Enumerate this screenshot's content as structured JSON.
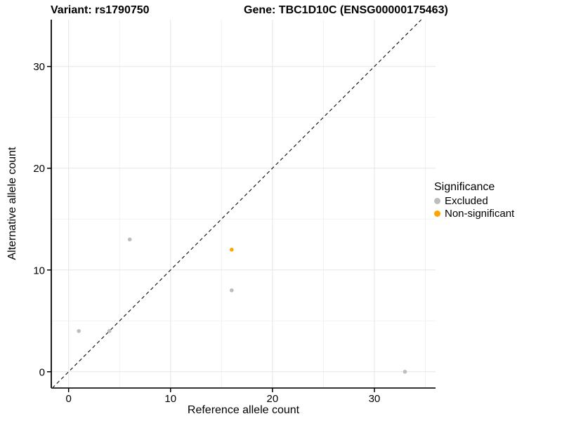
{
  "titles": {
    "variant": "Variant: rs1790750",
    "gene": "Gene: TBC1D10C (ENSG00000175463)"
  },
  "chart_data": {
    "type": "scatter",
    "xlabel": "Reference allele count",
    "ylabel": "Alternative allele count",
    "x_ticks": [
      0,
      10,
      20,
      30
    ],
    "y_ticks": [
      0,
      10,
      20,
      30
    ],
    "x_minor": [
      5,
      15,
      25,
      35
    ],
    "y_minor": [
      5,
      15,
      25
    ],
    "xlim": [
      -1.7,
      36.0
    ],
    "ylim": [
      -1.6,
      34.6
    ],
    "grid": "on",
    "identity_line": {
      "shown": true,
      "style": "dashed",
      "equation": "y = x"
    },
    "series": [
      {
        "name": "Excluded",
        "color": "#BDBDBD",
        "points": [
          [
            1,
            4
          ],
          [
            4,
            4
          ],
          [
            6,
            13
          ],
          [
            16,
            8
          ],
          [
            33,
            0
          ]
        ]
      },
      {
        "name": "Non-significant",
        "color": "#FFA500",
        "points": [
          [
            16,
            12
          ]
        ]
      }
    ],
    "legend": {
      "title": "Significance",
      "position": "right"
    }
  }
}
